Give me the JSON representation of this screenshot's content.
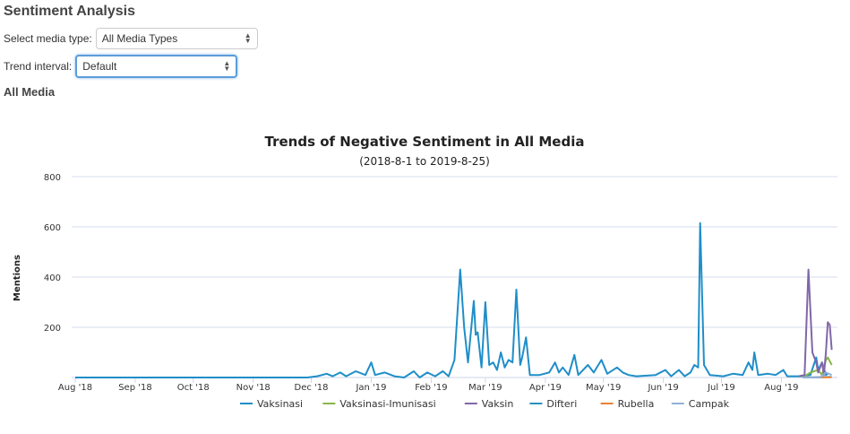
{
  "page": {
    "title": "Sentiment Analysis",
    "section": "All Media"
  },
  "controls": {
    "media_label": "Select media type:",
    "media_value": "All Media Types",
    "interval_label": "Trend interval:",
    "interval_value": "Default"
  },
  "chart_data": {
    "type": "line",
    "title": "Trends of Negative Sentiment in All Media",
    "subtitle": "(2018-8-1 to 2019-8-25)",
    "xlabel": "",
    "ylabel": "Mentions",
    "x_unit": "days since 2018-08-01",
    "xlim": [
      0,
      395
    ],
    "ylim": [
      0,
      800
    ],
    "yticks": [
      200,
      400,
      600,
      800
    ],
    "xticks": [
      {
        "day": 0,
        "label": "Aug '18"
      },
      {
        "day": 31,
        "label": "Sep '18"
      },
      {
        "day": 61,
        "label": "Oct '18"
      },
      {
        "day": 92,
        "label": "Nov '18"
      },
      {
        "day": 122,
        "label": "Dec '18"
      },
      {
        "day": 153,
        "label": "Jan '19"
      },
      {
        "day": 184,
        "label": "Feb '19"
      },
      {
        "day": 212,
        "label": "Mar '19"
      },
      {
        "day": 243,
        "label": "Apr '19"
      },
      {
        "day": 273,
        "label": "May '19"
      },
      {
        "day": 304,
        "label": "Jun '19"
      },
      {
        "day": 334,
        "label": "Jul '19"
      },
      {
        "day": 365,
        "label": "Aug '19"
      }
    ],
    "legend_position": "bottom",
    "series": [
      {
        "name": "Vaksinasi",
        "color": "#1f8ec8",
        "points": [
          [
            0,
            0
          ],
          [
            120,
            0
          ],
          [
            125,
            5
          ],
          [
            130,
            15
          ],
          [
            133,
            5
          ],
          [
            137,
            20
          ],
          [
            140,
            5
          ],
          [
            145,
            25
          ],
          [
            150,
            10
          ],
          [
            153,
            60
          ],
          [
            155,
            10
          ],
          [
            160,
            20
          ],
          [
            165,
            5
          ],
          [
            170,
            0
          ],
          [
            175,
            25
          ],
          [
            178,
            0
          ],
          [
            182,
            20
          ],
          [
            186,
            5
          ],
          [
            190,
            25
          ],
          [
            193,
            5
          ],
          [
            196,
            70
          ],
          [
            199,
            430
          ],
          [
            201,
            200
          ],
          [
            203,
            60
          ],
          [
            206,
            305
          ],
          [
            207,
            170
          ],
          [
            208,
            180
          ],
          [
            210,
            40
          ],
          [
            212,
            300
          ],
          [
            214,
            50
          ],
          [
            216,
            60
          ],
          [
            218,
            30
          ],
          [
            220,
            100
          ],
          [
            222,
            40
          ],
          [
            224,
            70
          ],
          [
            226,
            60
          ],
          [
            228,
            350
          ],
          [
            230,
            50
          ],
          [
            231,
            80
          ],
          [
            233,
            160
          ],
          [
            235,
            10
          ],
          [
            240,
            10
          ],
          [
            245,
            20
          ],
          [
            248,
            60
          ],
          [
            250,
            20
          ],
          [
            252,
            40
          ],
          [
            255,
            10
          ],
          [
            258,
            90
          ],
          [
            260,
            10
          ],
          [
            265,
            50
          ],
          [
            268,
            20
          ],
          [
            272,
            70
          ],
          [
            275,
            15
          ],
          [
            280,
            40
          ],
          [
            283,
            20
          ],
          [
            286,
            10
          ],
          [
            290,
            5
          ],
          [
            300,
            10
          ],
          [
            305,
            30
          ],
          [
            308,
            5
          ],
          [
            312,
            30
          ],
          [
            315,
            5
          ],
          [
            318,
            20
          ],
          [
            320,
            50
          ],
          [
            322,
            40
          ],
          [
            323,
            615
          ],
          [
            325,
            50
          ],
          [
            328,
            10
          ],
          [
            335,
            5
          ],
          [
            340,
            15
          ],
          [
            345,
            10
          ],
          [
            348,
            60
          ],
          [
            350,
            30
          ],
          [
            351,
            100
          ],
          [
            353,
            10
          ],
          [
            358,
            15
          ],
          [
            362,
            10
          ],
          [
            366,
            30
          ],
          [
            368,
            5
          ],
          [
            375,
            5
          ],
          [
            380,
            10
          ],
          [
            383,
            80
          ],
          [
            384,
            30
          ],
          [
            386,
            60
          ],
          [
            388,
            10
          ],
          [
            389,
            15
          ]
        ]
      },
      {
        "name": "Vaksinasi-Imunisasi",
        "color": "#8cb54a",
        "points": [
          [
            376,
            0
          ],
          [
            380,
            20
          ],
          [
            384,
            30
          ],
          [
            386,
            10
          ],
          [
            388,
            70
          ],
          [
            389,
            80
          ],
          [
            391,
            50
          ]
        ]
      },
      {
        "name": "Vaksin",
        "color": "#8067a8",
        "points": [
          [
            374,
            5
          ],
          [
            377,
            10
          ],
          [
            379,
            430
          ],
          [
            381,
            100
          ],
          [
            383,
            60
          ],
          [
            384,
            20
          ],
          [
            386,
            60
          ],
          [
            387,
            10
          ],
          [
            388,
            100
          ],
          [
            389,
            220
          ],
          [
            390,
            210
          ],
          [
            391,
            110
          ]
        ]
      },
      {
        "name": "Difteri",
        "color": "#2a8fc0",
        "points": [
          [
            376,
            0
          ],
          [
            391,
            2
          ]
        ]
      },
      {
        "name": "Rubella",
        "color": "#e8823a",
        "points": [
          [
            376,
            0
          ],
          [
            391,
            1
          ]
        ]
      },
      {
        "name": "Campak",
        "color": "#8fb0d8",
        "points": [
          [
            376,
            0
          ],
          [
            385,
            0
          ],
          [
            388,
            20
          ],
          [
            391,
            10
          ]
        ]
      }
    ]
  }
}
